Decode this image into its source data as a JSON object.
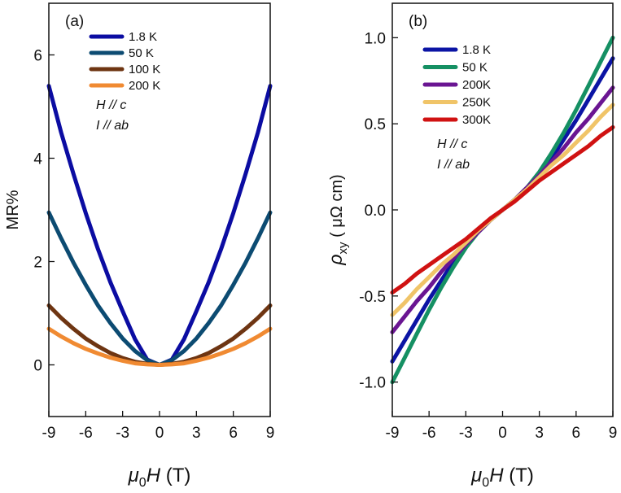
{
  "chart_data": [
    {
      "type": "line",
      "panel_label": "(a)",
      "xlabel_prefix": "μ",
      "xlabel_sub": "0",
      "xlabel_var": "H",
      "xlabel_unit": " (T)",
      "ylabel": "MR%",
      "xlim": [
        -9,
        9
      ],
      "ylim": [
        -1,
        7
      ],
      "xticks": [
        -9,
        -6,
        -3,
        0,
        3,
        6,
        9
      ],
      "xtick_labels": [
        "-9",
        "-6",
        "-3",
        "0",
        "3",
        "6",
        "9"
      ],
      "yticks": [
        0,
        2,
        4,
        6
      ],
      "ytick_labels": [
        "0",
        "2",
        "4",
        "6"
      ],
      "grid": false,
      "legend_position": "top-left",
      "annotations": [
        "H // c",
        "I // ab"
      ],
      "x": [
        -9,
        -8,
        -7,
        -6,
        -5,
        -4,
        -3,
        -2,
        -1,
        0,
        1,
        2,
        3,
        4,
        5,
        6,
        7,
        8,
        9
      ],
      "series": [
        {
          "name": "1.8 K",
          "color": "#0b0ca2",
          "values": [
            5.4,
            4.5,
            3.7,
            2.94,
            2.24,
            1.6,
            1.04,
            0.5,
            0.1,
            0,
            0.1,
            0.5,
            1.04,
            1.6,
            2.24,
            2.94,
            3.7,
            4.5,
            5.4
          ]
        },
        {
          "name": "50 K",
          "color": "#0c4b72",
          "values": [
            2.95,
            2.45,
            1.98,
            1.55,
            1.15,
            0.81,
            0.51,
            0.27,
            0.09,
            0,
            0.09,
            0.27,
            0.51,
            0.81,
            1.15,
            1.55,
            1.98,
            2.45,
            2.95
          ]
        },
        {
          "name": "100 K",
          "color": "#6e3512",
          "values": [
            1.15,
            0.91,
            0.7,
            0.51,
            0.36,
            0.23,
            0.13,
            0.06,
            0.02,
            0,
            0.02,
            0.06,
            0.13,
            0.23,
            0.36,
            0.51,
            0.7,
            0.91,
            1.15
          ]
        },
        {
          "name": "200 K",
          "color": "#f08a32",
          "values": [
            0.7,
            0.55,
            0.42,
            0.31,
            0.22,
            0.14,
            0.08,
            0.03,
            0.01,
            0,
            0.01,
            0.03,
            0.08,
            0.14,
            0.22,
            0.31,
            0.42,
            0.55,
            0.7
          ]
        }
      ]
    },
    {
      "type": "line",
      "panel_label": "(b)",
      "xlabel_prefix": "μ",
      "xlabel_sub": "0",
      "xlabel_var": "H",
      "xlabel_unit": " (T)",
      "ylabel_var": "ρ",
      "ylabel_sub": "xy",
      "ylabel_unit": "  ( μΩ  cm)",
      "xlim": [
        -9,
        9
      ],
      "ylim": [
        -1.2,
        1.2
      ],
      "xticks": [
        -9,
        -6,
        -3,
        0,
        3,
        6,
        9
      ],
      "xtick_labels": [
        "-9",
        "-6",
        "-3",
        "0",
        "3",
        "6",
        "9"
      ],
      "yticks": [
        -1.0,
        -0.5,
        0.0,
        0.5,
        1.0
      ],
      "ytick_labels": [
        "-1.0",
        "-0.5",
        "0.0",
        "0.5",
        "1.0"
      ],
      "grid": false,
      "legend_position": "top-left",
      "annotations": [
        "H // c",
        "I // ab"
      ],
      "x": [
        -9,
        -8,
        -7,
        -6,
        -5,
        -4,
        -3,
        -2,
        -1,
        0,
        1,
        2,
        3,
        4,
        5,
        6,
        7,
        8,
        9
      ],
      "series": [
        {
          "name": "1.8 K",
          "color": "#0b14a4",
          "values": [
            -0.88,
            -0.76,
            -0.64,
            -0.52,
            -0.41,
            -0.3,
            -0.21,
            -0.13,
            -0.06,
            0,
            0.06,
            0.13,
            0.21,
            0.3,
            0.41,
            0.52,
            0.64,
            0.76,
            0.88
          ]
        },
        {
          "name": "50 K",
          "color": "#159063",
          "values": [
            -1.0,
            -0.86,
            -0.72,
            -0.58,
            -0.45,
            -0.33,
            -0.22,
            -0.13,
            -0.06,
            0,
            0.06,
            0.13,
            0.22,
            0.33,
            0.45,
            0.58,
            0.72,
            0.86,
            1.0
          ]
        },
        {
          "name": "200K",
          "color": "#6a1592",
          "values": [
            -0.71,
            -0.62,
            -0.53,
            -0.45,
            -0.36,
            -0.28,
            -0.2,
            -0.13,
            -0.06,
            0,
            0.06,
            0.13,
            0.2,
            0.28,
            0.36,
            0.45,
            0.53,
            0.62,
            0.71
          ]
        },
        {
          "name": "250K",
          "color": "#f0c468",
          "values": [
            -0.61,
            -0.54,
            -0.46,
            -0.39,
            -0.32,
            -0.26,
            -0.19,
            -0.12,
            -0.06,
            0,
            0.06,
            0.12,
            0.19,
            0.26,
            0.32,
            0.39,
            0.46,
            0.54,
            0.61
          ]
        },
        {
          "name": "300K",
          "color": "#d01212",
          "values": [
            -0.48,
            -0.43,
            -0.37,
            -0.32,
            -0.27,
            -0.22,
            -0.17,
            -0.11,
            -0.05,
            0,
            0.05,
            0.11,
            0.17,
            0.22,
            0.27,
            0.32,
            0.37,
            0.43,
            0.48
          ]
        }
      ]
    }
  ]
}
